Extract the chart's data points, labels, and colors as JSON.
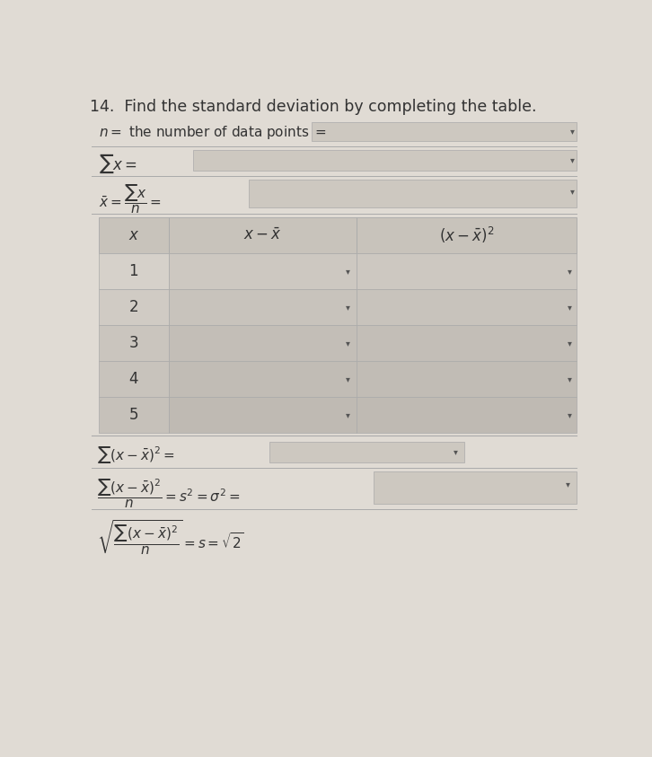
{
  "title": "14.  Find the standard deviation by completing the table.",
  "bg_color": "#e0dbd4",
  "text_color": "#333333",
  "title_fontsize": 12.5,
  "body_fontsize": 11,
  "math_fontsize": 11,
  "input_box_color": "#cdc8c0",
  "header_row_color": "#c8c3bb",
  "data_col1_color": "#d8d3cc",
  "data_col23_color": "#d0cbc3",
  "row_alt_color": "#ccc7bf",
  "separator_color": "#aaaaaa",
  "arrow_color": "#555555"
}
